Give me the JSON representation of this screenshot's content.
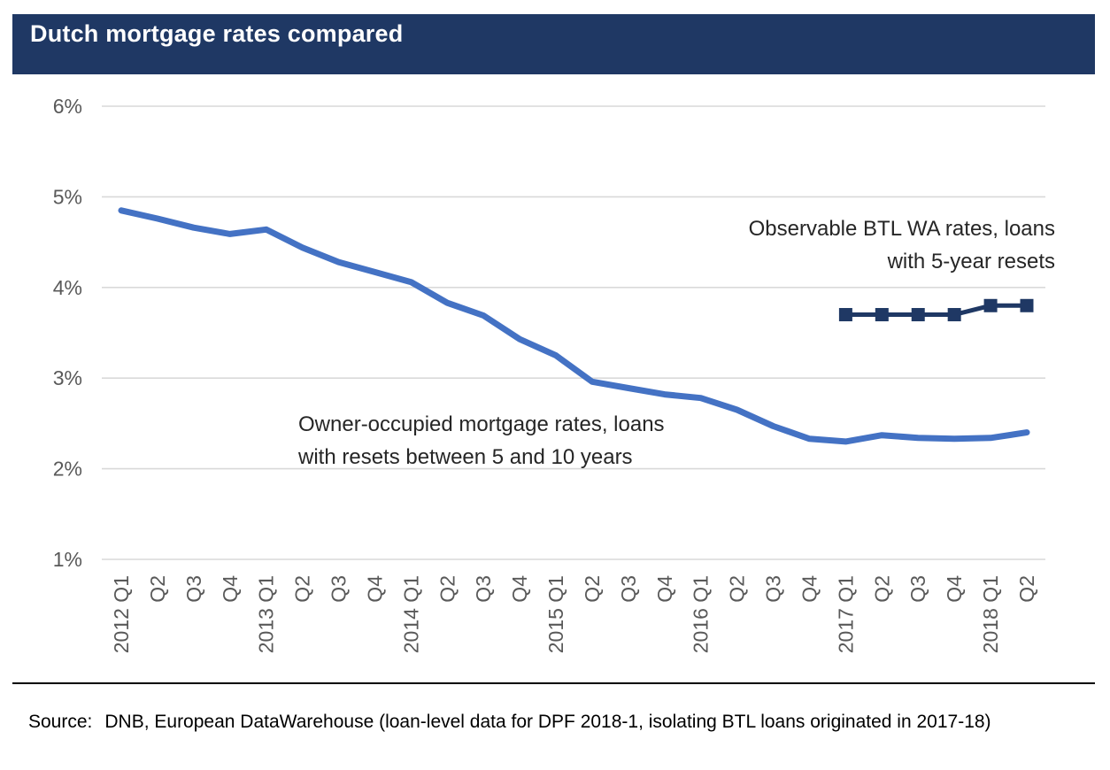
{
  "header": {
    "title": "Dutch mortgage rates compared"
  },
  "colors": {
    "accent_navy": "#1F3864",
    "series_blue": "#4472C4",
    "gridline": "#D9D9D9",
    "axis_text": "#595959",
    "annotation_text": "#262626",
    "title_text": "#FFFFFF",
    "source_text": "#000000"
  },
  "chart_data": {
    "type": "line",
    "title": "Dutch mortgage rates compared",
    "xlabel": "",
    "ylabel": "",
    "ylim": [
      1,
      6
    ],
    "grid": true,
    "legend_position": "none (inline text annotations)",
    "yticks": [
      {
        "value": 6,
        "label": "6%"
      },
      {
        "value": 5,
        "label": "5%"
      },
      {
        "value": 4,
        "label": "4%"
      },
      {
        "value": 3,
        "label": "3%"
      },
      {
        "value": 2,
        "label": "2%"
      },
      {
        "value": 1,
        "label": "1%"
      }
    ],
    "categories": [
      "2012 Q1",
      "Q2",
      "Q3",
      "Q4",
      "2013 Q1",
      "Q2",
      "Q3",
      "Q4",
      "2014 Q1",
      "Q2",
      "Q3",
      "Q4",
      "2015 Q1",
      "Q2",
      "Q3",
      "Q4",
      "2016 Q1",
      "Q2",
      "Q3",
      "Q4",
      "2017 Q1",
      "Q2",
      "Q3",
      "Q4",
      "2018 Q1",
      "Q2"
    ],
    "series": [
      {
        "name": "Owner-occupied mortgage rates, loans with resets between 5 and 10 years",
        "color": "#4472C4",
        "marker": "none",
        "line_width": 7,
        "values": [
          4.85,
          4.76,
          4.66,
          4.59,
          4.64,
          4.44,
          4.28,
          4.17,
          4.06,
          3.83,
          3.69,
          3.43,
          3.25,
          2.96,
          2.89,
          2.82,
          2.78,
          2.65,
          2.47,
          2.33,
          2.3,
          2.37,
          2.34,
          2.33,
          2.34,
          2.4
        ]
      },
      {
        "name": "Observable BTL WA rates, loans with 5-year resets",
        "color": "#1F3864",
        "marker": "square",
        "line_width": 5,
        "values": [
          null,
          null,
          null,
          null,
          null,
          null,
          null,
          null,
          null,
          null,
          null,
          null,
          null,
          null,
          null,
          null,
          null,
          null,
          null,
          null,
          3.7,
          3.7,
          3.7,
          3.7,
          3.8,
          3.8
        ]
      }
    ],
    "annotations": [
      {
        "id": "btl",
        "lines": [
          "Observable BTL WA rates, loans",
          "with 5-year resets"
        ],
        "align": "right"
      },
      {
        "id": "owner",
        "lines": [
          "Owner-occupied mortgage rates, loans",
          "with resets between 5 and 10 years"
        ],
        "align": "left"
      }
    ]
  },
  "source": {
    "label": "Source:",
    "text": "DNB, European DataWarehouse (loan-level data for DPF 2018-1, isolating BTL loans originated in 2017-18)"
  }
}
